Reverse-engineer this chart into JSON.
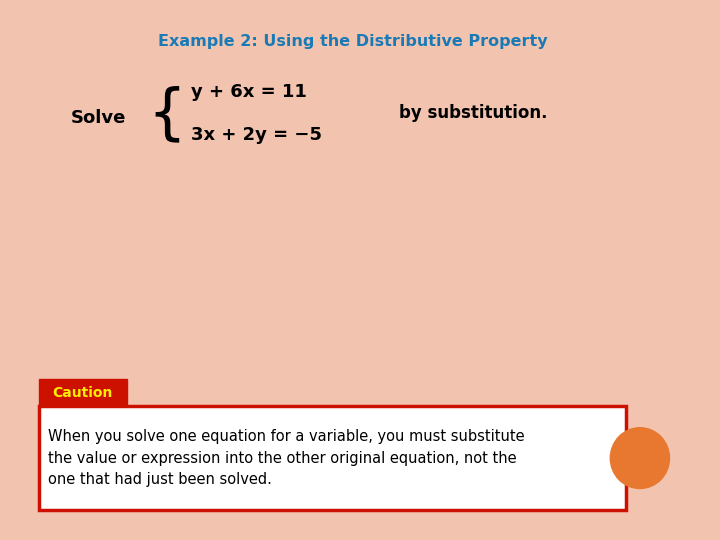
{
  "title": "Example 2: Using the Distributive Property",
  "title_color": "#1a7ab5",
  "title_fontsize": 11.5,
  "background_color": "#ffffff",
  "outer_background": "#f2c4b0",
  "solve_label": "Solve",
  "eq1": "y + 6x = 11",
  "eq2": "3x + 2y = −5",
  "by_sub": "by substitution.",
  "caution_label": "Caution",
  "caution_bg": "#cc1100",
  "caution_text_color": "#ffee00",
  "caution_body": "When you solve one equation for a variable, you must substitute\nthe value or expression into the other original equation, not the\none that had just been solved.",
  "caution_body_color": "#000000",
  "caution_border_color": "#cc1100",
  "orange_circle_color": "#e87830"
}
